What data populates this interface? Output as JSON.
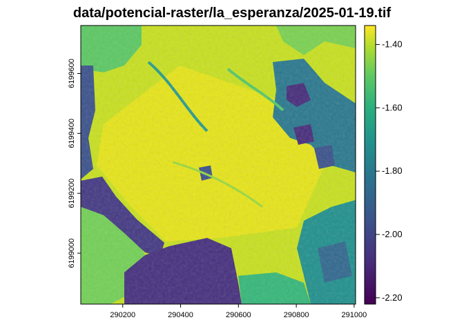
{
  "title": "data/potencial-raster/la_esperanza/2025-01-19.tif",
  "chart_data": {
    "type": "heatmap",
    "title": "data/potencial-raster/la_esperanza/2025-01-19.tif",
    "xlabel": "",
    "ylabel": "",
    "x_ticks": [
      290200,
      290400,
      290600,
      290800,
      291000
    ],
    "y_ticks": [
      6199000,
      6199200,
      6199400,
      6199600
    ],
    "xlim": [
      290055,
      291005
    ],
    "ylim": [
      6198830,
      6199760
    ],
    "colorbar": {
      "ticks": [
        -1.4,
        -1.6,
        -1.8,
        -2.0,
        -2.2
      ],
      "tick_labels": [
        "-1.40",
        "-1.60",
        "-1.80",
        "-2.00",
        "-2.20"
      ],
      "range": [
        -2.22,
        -1.34
      ],
      "colormap": "viridis"
    },
    "value_regions": [
      {
        "region": "background field",
        "value": -1.42
      },
      {
        "region": "central bright area",
        "value": -1.36
      },
      {
        "region": "upper-left grassy block",
        "value": -1.58
      },
      {
        "region": "lower-left field",
        "value": -1.6
      },
      {
        "region": "left edge channel",
        "value": -1.98
      },
      {
        "region": "diagonal channel",
        "value": -2.06
      },
      {
        "region": "bottom-center dark patch",
        "value": -2.12
      },
      {
        "region": "upper-right wetland",
        "value": -1.92
      },
      {
        "region": "lower-right wetland",
        "value": -1.8
      }
    ]
  },
  "colors": {
    "viridis_low": "#440154",
    "viridis_mid": "#21908c",
    "viridis_high": "#fde725"
  }
}
